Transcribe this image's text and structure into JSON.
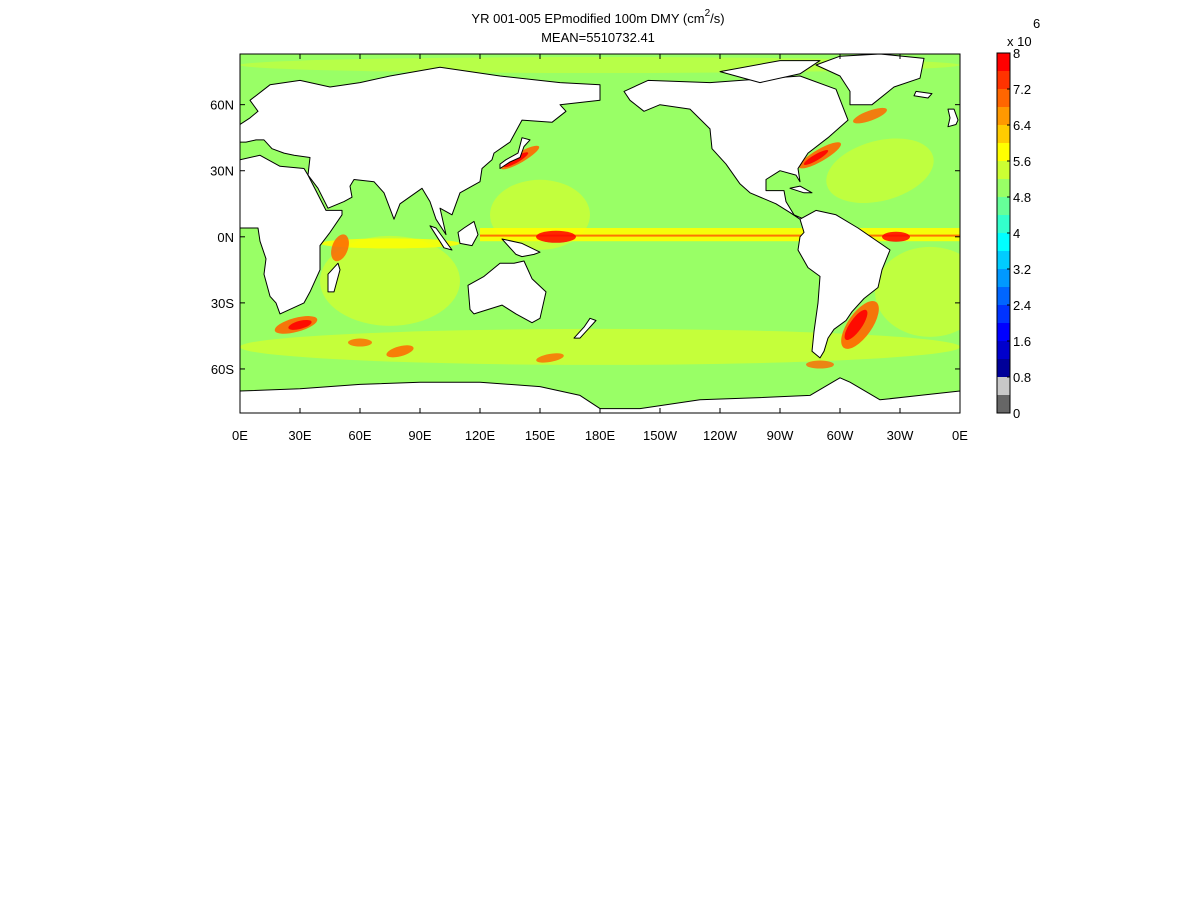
{
  "title": {
    "line1_prefix": "YR 001-005 EPmodified 100m DMY (cm",
    "line1_sup": "2",
    "line1_suffix": "/s)",
    "line2": "MEAN=5510732.41"
  },
  "map": {
    "projection": "equirectangular",
    "lon_range": [
      0,
      360
    ],
    "lat_range": [
      -80,
      83
    ],
    "land_color": "#ffffff",
    "coastline_color": "#000000",
    "ocean_background_color": "#99ff66",
    "x_tick_labels": [
      "0E",
      "30E",
      "60E",
      "90E",
      "120E",
      "150E",
      "180E",
      "150W",
      "120W",
      "90W",
      "60W",
      "30W",
      "0E"
    ],
    "x_tick_lons": [
      0,
      30,
      60,
      90,
      120,
      150,
      180,
      210,
      240,
      270,
      300,
      330,
      360
    ],
    "y_tick_labels": [
      "60N",
      "30N",
      "0N",
      "30S",
      "60S"
    ],
    "y_tick_lats": [
      60,
      30,
      0,
      -30,
      -60
    ]
  },
  "colorbar": {
    "multiplier_label": "x 10",
    "multiplier_exponent": "6",
    "tick_labels": [
      "8",
      "7.2",
      "6.4",
      "5.6",
      "4.8",
      "4",
      "3.2",
      "2.4",
      "1.6",
      "0.8",
      "0"
    ],
    "tick_values": [
      8,
      7.2,
      6.4,
      5.6,
      4.8,
      4,
      3.2,
      2.4,
      1.6,
      0.8,
      0
    ],
    "bands": [
      {
        "lo": 0.0,
        "hi": 0.4,
        "color": "#666666"
      },
      {
        "lo": 0.4,
        "hi": 0.8,
        "color": "#c8c8c8"
      },
      {
        "lo": 0.8,
        "hi": 1.2,
        "color": "#000099"
      },
      {
        "lo": 1.2,
        "hi": 1.6,
        "color": "#0000cc"
      },
      {
        "lo": 1.6,
        "hi": 2.0,
        "color": "#0000ff"
      },
      {
        "lo": 2.0,
        "hi": 2.4,
        "color": "#0033ff"
      },
      {
        "lo": 2.4,
        "hi": 2.8,
        "color": "#0066ff"
      },
      {
        "lo": 2.8,
        "hi": 3.2,
        "color": "#0099ff"
      },
      {
        "lo": 3.2,
        "hi": 3.6,
        "color": "#00ccff"
      },
      {
        "lo": 3.6,
        "hi": 4.0,
        "color": "#00ffff"
      },
      {
        "lo": 4.0,
        "hi": 4.4,
        "color": "#33ffcc"
      },
      {
        "lo": 4.4,
        "hi": 4.8,
        "color": "#66ff99"
      },
      {
        "lo": 4.8,
        "hi": 5.2,
        "color": "#99ff66"
      },
      {
        "lo": 5.2,
        "hi": 5.6,
        "color": "#ccff33"
      },
      {
        "lo": 5.6,
        "hi": 6.0,
        "color": "#ffff00"
      },
      {
        "lo": 6.0,
        "hi": 6.4,
        "color": "#ffcc00"
      },
      {
        "lo": 6.4,
        "hi": 6.8,
        "color": "#ff9900"
      },
      {
        "lo": 6.8,
        "hi": 7.2,
        "color": "#ff6600"
      },
      {
        "lo": 7.2,
        "hi": 7.6,
        "color": "#ff3300"
      },
      {
        "lo": 7.6,
        "hi": 8.0,
        "color": "#ff0000"
      }
    ]
  },
  "colors": {
    "axis": "#000000",
    "ocean_base": "#99ff66",
    "ocean_mid": "#ccff33",
    "ocean_high": "#ffff00",
    "ocean_hot": "#ff6600",
    "ocean_peak": "#ff0000"
  }
}
